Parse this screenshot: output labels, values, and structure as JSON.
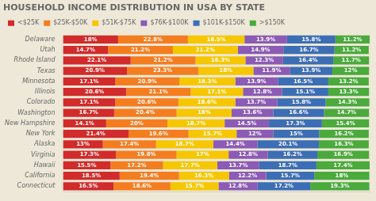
{
  "chart_data": {
    "type": "bar",
    "orientation": "horizontal",
    "stacked": true,
    "title": "HOUSEHOLD INCOME DISTRIBUTION IN USA BY STATE",
    "categories": [
      "Delaware",
      "Utah",
      "Rhode Island",
      "Texas",
      "Minnesota",
      "Illinois",
      "Colorado",
      "Washington",
      "New Hampshire",
      "New York",
      "Alaska",
      "Virginia",
      "Hawaii",
      "California",
      "Connecticut"
    ],
    "series": [
      {
        "name": "<$25K",
        "color": "#d12b2b",
        "values": [
          18.0,
          14.7,
          22.1,
          20.9,
          17.1,
          20.6,
          17.1,
          16.7,
          14.1,
          21.4,
          13.0,
          17.3,
          15.5,
          18.5,
          16.5
        ],
        "value_labels": [
          "18%",
          "14.7%",
          "22.1%",
          "20.9%",
          "17.1%",
          "20.6%",
          "17.1%",
          "16.7%",
          "14.1%",
          "21.4%",
          "13%",
          "17.3%",
          "15.5%",
          "18.5%",
          "16.5%"
        ]
      },
      {
        "name": "$25K-$50K",
        "color": "#f47d20",
        "values": [
          22.8,
          21.2,
          21.2,
          23.3,
          20.9,
          21.1,
          20.6,
          20.4,
          20.0,
          19.6,
          17.4,
          19.8,
          17.2,
          19.4,
          18.6
        ],
        "value_labels": [
          "22.8%",
          "21.2%",
          "21.2%",
          "23.3%",
          "20.9%",
          "21.1%",
          "20.6%",
          "20.4%",
          "20%",
          "19.6%",
          "17.4%",
          "19.8%",
          "17.2%",
          "19.4%",
          "18.6%"
        ]
      },
      {
        "name": "$51K-$75K",
        "color": "#f6c700",
        "values": [
          18.5,
          21.2,
          16.3,
          18.0,
          18.3,
          17.1,
          18.6,
          18.0,
          18.7,
          15.7,
          18.7,
          17.0,
          17.7,
          16.3,
          15.7
        ],
        "value_labels": [
          "18.5%",
          "21.2%",
          "16.3%",
          "18%",
          "18.3%",
          "17.1%",
          "18.6%",
          "18%",
          "18.7%",
          "15.7%",
          "18.7%",
          "17%",
          "17.7%",
          "16.3%",
          "15.7%"
        ]
      },
      {
        "name": "$76K-$100K",
        "color": "#8b5bb5",
        "values": [
          13.9,
          14.9,
          12.3,
          11.9,
          13.9,
          12.8,
          13.7,
          13.6,
          14.5,
          12.0,
          14.4,
          12.8,
          13.7,
          12.2,
          12.8
        ],
        "value_labels": [
          "13.9%",
          "14.9%",
          "12.3%",
          "11.9%",
          "13.9%",
          "12.8%",
          "13.7%",
          "13.6%",
          "14.5%",
          "12%",
          "14.4%",
          "12.8%",
          "13.7%",
          "12.2%",
          "12.8%"
        ]
      },
      {
        "name": "$101K-$150K",
        "color": "#3c6eb5",
        "values": [
          15.8,
          16.7,
          16.4,
          13.9,
          16.5,
          15.1,
          15.8,
          16.6,
          17.3,
          15.0,
          20.1,
          16.2,
          18.7,
          15.7,
          17.2
        ],
        "value_labels": [
          "15.8%",
          "16.7%",
          "16.4%",
          "13.9%",
          "16.5%",
          "15.1%",
          "15.8%",
          "16.6%",
          "17.3%",
          "15%",
          "20.1%",
          "16.2%",
          "18.7%",
          "15.7%",
          "17.2%"
        ]
      },
      {
        "name": ">$150K",
        "color": "#4aaa3c",
        "values": [
          11.2,
          11.2,
          11.7,
          12.0,
          13.2,
          13.3,
          14.3,
          14.7,
          15.4,
          16.2,
          16.3,
          16.9,
          17.4,
          18.0,
          19.3
        ],
        "value_labels": [
          "11.2%",
          "11.2%",
          "11.7%",
          "12%",
          "13.2%",
          "13.3%",
          "14.3%",
          "14.7%",
          "15.4%",
          "16.2%",
          "16.3%",
          "16.9%",
          "17.4%",
          "18%",
          "19.3%"
        ]
      }
    ],
    "xlim": [
      0,
      100.2
    ],
    "tick_labels": "y",
    "data_labels": true,
    "grid": false,
    "legend": "top"
  }
}
